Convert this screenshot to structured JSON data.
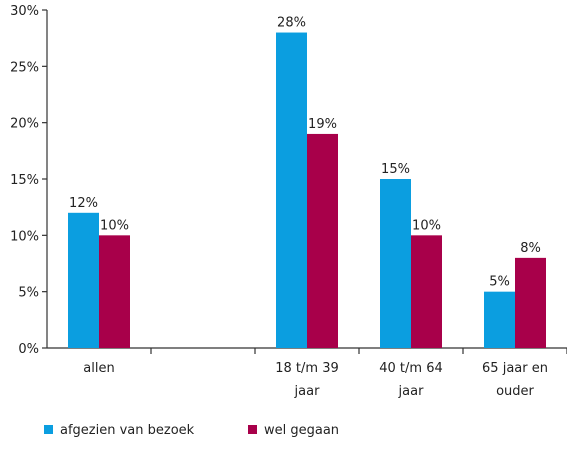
{
  "chart_data": {
    "type": "bar",
    "categories": [
      [
        "allen"
      ],
      [],
      [
        "18 t/m 39",
        "jaar"
      ],
      [
        "40 t/m 64",
        "jaar"
      ],
      [
        "65 jaar en",
        "ouder"
      ]
    ],
    "series": [
      {
        "name": "afgezien van bezoek",
        "color": "#0b9ee0",
        "values": [
          12,
          null,
          28,
          15,
          5
        ],
        "labels": [
          "12%",
          "",
          "28%",
          "15%",
          "5%"
        ]
      },
      {
        "name": "wel gegaan",
        "color": "#a8004a",
        "values": [
          10,
          null,
          19,
          10,
          8
        ],
        "labels": [
          "10%",
          "",
          "19%",
          "10%",
          "8%"
        ]
      }
    ],
    "ylim": [
      0,
      30
    ],
    "yticks": [
      0,
      5,
      10,
      15,
      20,
      25,
      30
    ],
    "ytick_labels": [
      "0%",
      "5%",
      "10%",
      "15%",
      "20%",
      "25%",
      "30%"
    ],
    "xlabel": "",
    "ylabel": "",
    "title": "",
    "grid": false,
    "legend_position": "bottom-left"
  }
}
